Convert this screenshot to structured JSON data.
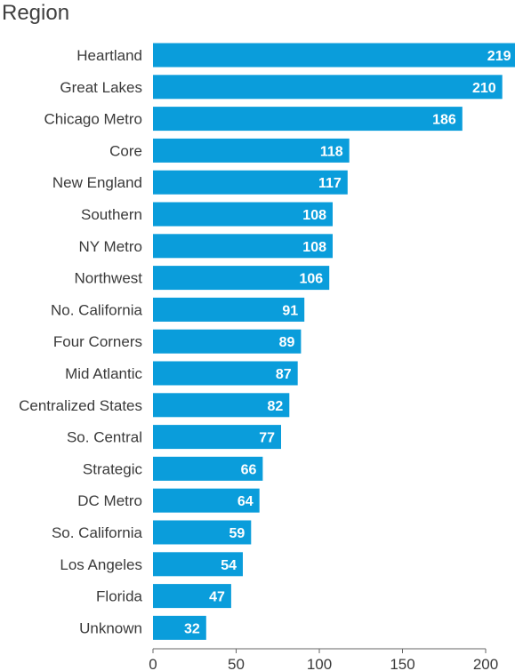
{
  "chart_data": {
    "type": "bar",
    "orientation": "horizontal",
    "title": "Region",
    "categories": [
      "Heartland",
      "Great Lakes",
      "Chicago Metro",
      "Core",
      "New England",
      "Southern",
      "NY Metro",
      "Northwest",
      "No. California",
      "Four Corners",
      "Mid Atlantic",
      "Centralized States",
      "So. Central",
      "Strategic",
      "DC Metro",
      "So. California",
      "Los Angeles",
      "Florida",
      "Unknown"
    ],
    "values": [
      219,
      210,
      186,
      118,
      117,
      108,
      108,
      106,
      91,
      89,
      87,
      82,
      77,
      66,
      64,
      59,
      54,
      47,
      32
    ],
    "xlim": [
      0,
      200
    ],
    "xticks": [
      0,
      50,
      100,
      150,
      200
    ],
    "xtick_labels": [
      "0",
      "50",
      "100",
      "150",
      "200"
    ],
    "bar_color": "#0a9ddb",
    "data_labels": true,
    "grid": false
  }
}
